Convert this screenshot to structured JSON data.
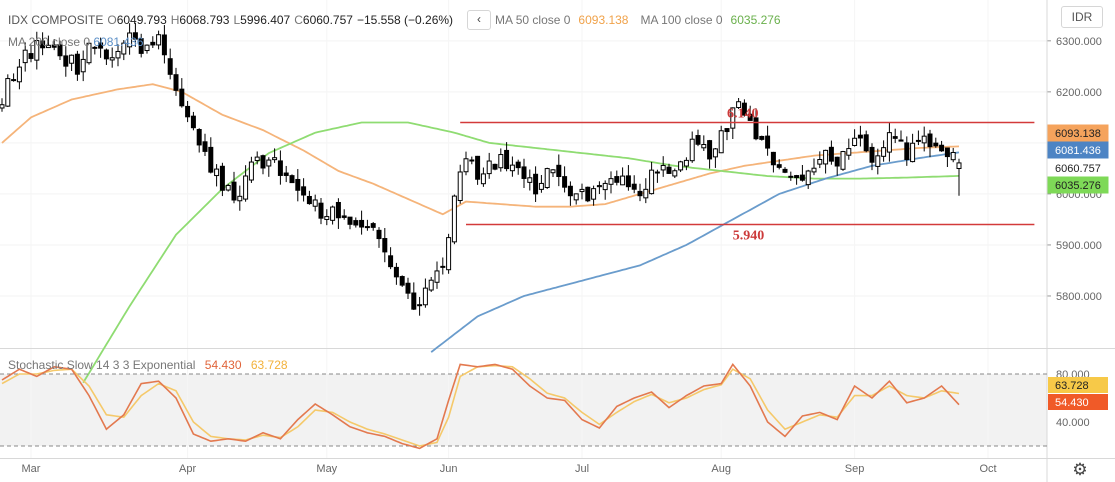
{
  "legend": {
    "symbol": "IDX COMPOSITE",
    "open_label": "O",
    "open": "6049.793",
    "high_label": "H",
    "high": "6068.793",
    "low_label": "L",
    "low": "5996.407",
    "close_label": "C",
    "close": "6060.757",
    "change": "−15.558 (−0.26%)",
    "nav_icon": "chevron-left-icon",
    "ma50_label": "MA 50 close 0",
    "ma50_value": "6093.138",
    "ma100_label": "MA 100 close 0",
    "ma100_value": "6035.276",
    "ma200_label": "MA 200 close 0",
    "ma200_value": "6081.436"
  },
  "stoch_legend": {
    "label": "Stochastic Slow 14 3 3 Exponential",
    "k_value": "54.430",
    "d_value": "63.728"
  },
  "currency": "IDR",
  "settings_icon": "gear-icon",
  "colors": {
    "up_fill": "#ffffff",
    "down_fill": "#000000",
    "candle_stroke": "#000000",
    "ma50": "#f5b47a",
    "ma100": "#8fdc72",
    "ma200": "#6a9ccc",
    "level_line": "#d33a3a",
    "level_text": "#cc3a3a",
    "stoch_k": "#e3794f",
    "stoch_d": "#f5c96a"
  },
  "chart_data": [
    {
      "type": "candlestick",
      "ylim": [
        5700,
        6380
      ],
      "y_ticks": [
        5800,
        5900,
        6000,
        6100,
        6200,
        6300
      ],
      "y_tick_labels": [
        "5800.000",
        "5900.000",
        "6000.000",
        "6100.000",
        "6200.000",
        "6300.000"
      ],
      "x_tick_labels": [
        "Mar",
        "Apr",
        "May",
        "Jun",
        "Jul",
        "Aug",
        "Sep",
        "Oct"
      ],
      "x_tick_days": [
        5,
        32,
        56,
        77,
        100,
        124,
        147,
        170
      ],
      "close_anchors": [
        [
          0,
          6190
        ],
        [
          3,
          6250
        ],
        [
          6,
          6300
        ],
        [
          10,
          6270
        ],
        [
          13,
          6250
        ],
        [
          16,
          6300
        ],
        [
          19,
          6270
        ],
        [
          22,
          6310
        ],
        [
          24,
          6270
        ],
        [
          27,
          6310
        ],
        [
          29,
          6250
        ],
        [
          31,
          6180
        ],
        [
          34,
          6080
        ],
        [
          37,
          6040
        ],
        [
          40,
          5990
        ],
        [
          43,
          6050
        ],
        [
          46,
          6070
        ],
        [
          49,
          6020
        ],
        [
          52,
          5980
        ],
        [
          55,
          5970
        ],
        [
          58,
          5960
        ],
        [
          61,
          5940
        ],
        [
          64,
          5920
        ],
        [
          67,
          5870
        ],
        [
          70,
          5800
        ],
        [
          72,
          5780
        ],
        [
          74,
          5820
        ],
        [
          76,
          5870
        ],
        [
          78,
          5990
        ],
        [
          80,
          6060
        ],
        [
          83,
          6040
        ],
        [
          86,
          6070
        ],
        [
          89,
          6050
        ],
        [
          92,
          6000
        ],
        [
          95,
          6050
        ],
        [
          98,
          5980
        ],
        [
          101,
          6000
        ],
        [
          104,
          6030
        ],
        [
          107,
          6030
        ],
        [
          110,
          6000
        ],
        [
          113,
          6050
        ],
        [
          116,
          6030
        ],
        [
          119,
          6110
        ],
        [
          122,
          6080
        ],
        [
          125,
          6120
        ],
        [
          127,
          6190
        ],
        [
          129,
          6130
        ],
        [
          132,
          6080
        ],
        [
          135,
          6050
        ],
        [
          138,
          6030
        ],
        [
          141,
          6080
        ],
        [
          144,
          6050
        ],
        [
          147,
          6110
        ],
        [
          150,
          6060
        ],
        [
          153,
          6120
        ],
        [
          156,
          6080
        ],
        [
          159,
          6110
        ],
        [
          162,
          6080
        ],
        [
          165,
          6065
        ]
      ],
      "last_candle": {
        "open": 6049.793,
        "high": 6068.793,
        "low": 5996.407,
        "close": 6060.757
      },
      "series": [
        {
          "name": "MA 50 close 0",
          "last": 6093.138,
          "anchors": [
            [
              0,
              6100
            ],
            [
              5,
              6150
            ],
            [
              12,
              6185
            ],
            [
              20,
              6205
            ],
            [
              26,
              6215
            ],
            [
              31,
              6200
            ],
            [
              38,
              6155
            ],
            [
              45,
              6125
            ],
            [
              52,
              6085
            ],
            [
              58,
              6045
            ],
            [
              64,
              6020
            ],
            [
              70,
              5990
            ],
            [
              76,
              5960
            ],
            [
              80,
              5985
            ],
            [
              86,
              5980
            ],
            [
              92,
              5975
            ],
            [
              98,
              5975
            ],
            [
              104,
              5980
            ],
            [
              110,
              6000
            ],
            [
              116,
              6020
            ],
            [
              122,
              6040
            ],
            [
              128,
              6055
            ],
            [
              134,
              6065
            ],
            [
              140,
              6075
            ],
            [
              146,
              6080
            ],
            [
              152,
              6085
            ],
            [
              158,
              6090
            ],
            [
              165,
              6093.138
            ]
          ]
        },
        {
          "name": "MA 100 close 0",
          "last": 6035.276,
          "anchors": [
            [
              14,
              5630
            ],
            [
              22,
              5780
            ],
            [
              30,
              5920
            ],
            [
              38,
              6010
            ],
            [
              46,
              6080
            ],
            [
              54,
              6120
            ],
            [
              62,
              6140
            ],
            [
              70,
              6140
            ],
            [
              78,
              6120
            ],
            [
              84,
              6100
            ],
            [
              92,
              6090
            ],
            [
              100,
              6080
            ],
            [
              108,
              6070
            ],
            [
              116,
              6055
            ],
            [
              124,
              6045
            ],
            [
              132,
              6035
            ],
            [
              140,
              6030
            ],
            [
              148,
              6030
            ],
            [
              156,
              6032
            ],
            [
              165,
              6035.276
            ]
          ]
        },
        {
          "name": "MA 200 close 0",
          "last": 6081.436,
          "anchors": [
            [
              74,
              5690
            ],
            [
              82,
              5760
            ],
            [
              90,
              5800
            ],
            [
              100,
              5830
            ],
            [
              110,
              5860
            ],
            [
              118,
              5900
            ],
            [
              126,
              5950
            ],
            [
              134,
              6000
            ],
            [
              142,
              6030
            ],
            [
              150,
              6055
            ],
            [
              158,
              6070
            ],
            [
              165,
              6081.436
            ]
          ]
        }
      ],
      "levels": [
        {
          "label": "6.140",
          "value": 6140
        },
        {
          "label": "5.940",
          "value": 5940
        }
      ],
      "price_tags": [
        {
          "text": "6093.138",
          "value": 6093.138,
          "kind": "ma50"
        },
        {
          "text": "6081.436",
          "value": 6081.436,
          "kind": "ma200"
        },
        {
          "text": "6060.757",
          "value": 6060.757,
          "kind": "last"
        },
        {
          "text": "6035.276",
          "value": 6035.276,
          "kind": "ma100"
        }
      ]
    },
    {
      "type": "line",
      "name": "Stochastic Slow 14 3 3 Exponential",
      "ylim": [
        10,
        100
      ],
      "bands": [
        20,
        80
      ],
      "y_tick_labels": [
        {
          "value": 80,
          "text": "80.000"
        },
        {
          "value": 40,
          "text": "40.000"
        }
      ],
      "series": [
        {
          "name": "K",
          "last": 54.43,
          "anchors": [
            [
              0,
              75
            ],
            [
              3,
              84
            ],
            [
              6,
              78
            ],
            [
              9,
              86
            ],
            [
              12,
              84
            ],
            [
              15,
              62
            ],
            [
              18,
              34
            ],
            [
              21,
              46
            ],
            [
              24,
              72
            ],
            [
              27,
              74
            ],
            [
              30,
              60
            ],
            [
              33,
              30
            ],
            [
              36,
              24
            ],
            [
              39,
              26
            ],
            [
              42,
              24
            ],
            [
              45,
              31
            ],
            [
              48,
              26
            ],
            [
              51,
              42
            ],
            [
              54,
              55
            ],
            [
              57,
              46
            ],
            [
              60,
              36
            ],
            [
              63,
              31
            ],
            [
              66,
              28
            ],
            [
              69,
              22
            ],
            [
              72,
              18
            ],
            [
              75,
              26
            ],
            [
              77,
              58
            ],
            [
              79,
              88
            ],
            [
              82,
              86
            ],
            [
              85,
              88
            ],
            [
              88,
              84
            ],
            [
              91,
              70
            ],
            [
              94,
              60
            ],
            [
              97,
              58
            ],
            [
              100,
              42
            ],
            [
              103,
              35
            ],
            [
              106,
              53
            ],
            [
              109,
              60
            ],
            [
              112,
              65
            ],
            [
              115,
              52
            ],
            [
              118,
              62
            ],
            [
              121,
              70
            ],
            [
              124,
              72
            ],
            [
              126,
              88
            ],
            [
              129,
              70
            ],
            [
              132,
              40
            ],
            [
              135,
              28
            ],
            [
              138,
              45
            ],
            [
              141,
              48
            ],
            [
              144,
              42
            ],
            [
              147,
              70
            ],
            [
              150,
              60
            ],
            [
              153,
              74
            ],
            [
              156,
              56
            ],
            [
              159,
              60
            ],
            [
              162,
              70
            ],
            [
              165,
              54.43
            ]
          ]
        },
        {
          "name": "D",
          "last": 63.728,
          "anchors": [
            [
              0,
              72
            ],
            [
              3,
              80
            ],
            [
              6,
              80
            ],
            [
              9,
              83
            ],
            [
              12,
              84
            ],
            [
              15,
              70
            ],
            [
              18,
              46
            ],
            [
              21,
              44
            ],
            [
              24,
              62
            ],
            [
              27,
              72
            ],
            [
              30,
              66
            ],
            [
              33,
              40
            ],
            [
              36,
              28
            ],
            [
              39,
              26
            ],
            [
              42,
              25
            ],
            [
              45,
              29
            ],
            [
              48,
              27
            ],
            [
              51,
              36
            ],
            [
              54,
              50
            ],
            [
              57,
              48
            ],
            [
              60,
              40
            ],
            [
              63,
              34
            ],
            [
              66,
              30
            ],
            [
              69,
              25
            ],
            [
              72,
              20
            ],
            [
              75,
              23
            ],
            [
              77,
              44
            ],
            [
              79,
              78
            ],
            [
              82,
              86
            ],
            [
              85,
              87
            ],
            [
              88,
              86
            ],
            [
              91,
              76
            ],
            [
              94,
              64
            ],
            [
              97,
              60
            ],
            [
              100,
              48
            ],
            [
              103,
              38
            ],
            [
              106,
              48
            ],
            [
              109,
              57
            ],
            [
              112,
              63
            ],
            [
              115,
              56
            ],
            [
              118,
              60
            ],
            [
              121,
              67
            ],
            [
              124,
              71
            ],
            [
              126,
              84
            ],
            [
              129,
              76
            ],
            [
              132,
              50
            ],
            [
              135,
              34
            ],
            [
              138,
              40
            ],
            [
              141,
              46
            ],
            [
              144,
              44
            ],
            [
              147,
              62
            ],
            [
              150,
              62
            ],
            [
              153,
              70
            ],
            [
              156,
              62
            ],
            [
              159,
              60
            ],
            [
              162,
              66
            ],
            [
              165,
              63.728
            ]
          ]
        }
      ],
      "value_tags": [
        {
          "text": "63.728",
          "value": 63.728,
          "kind": "d"
        },
        {
          "text": "54.430",
          "value": 54.43,
          "kind": "k"
        }
      ]
    }
  ]
}
